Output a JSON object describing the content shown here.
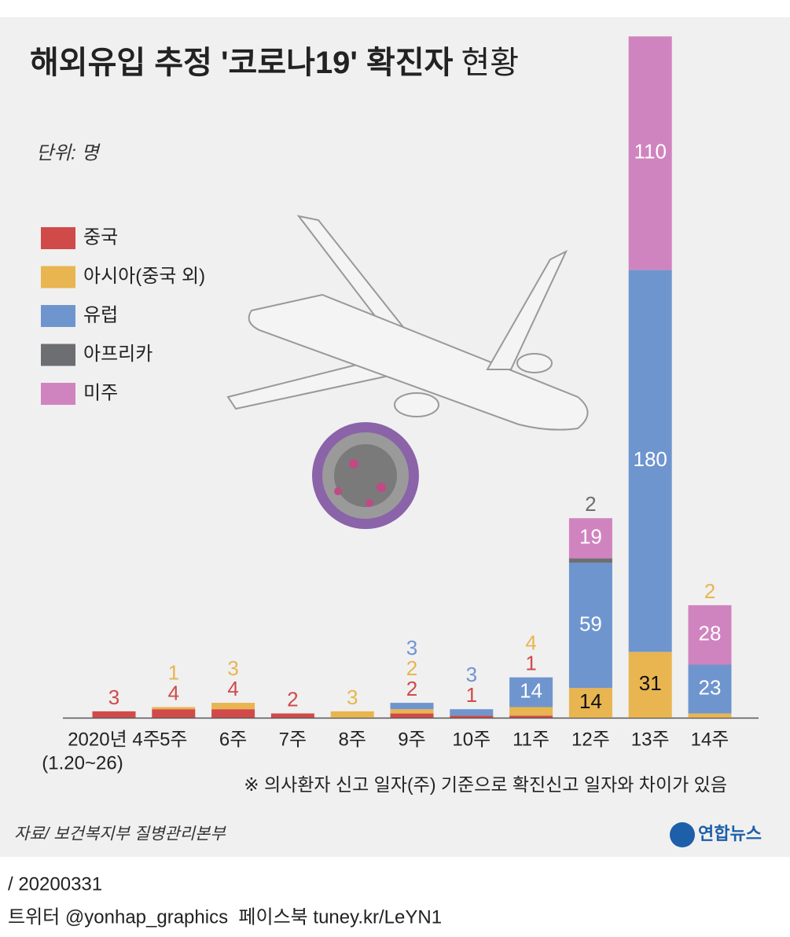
{
  "chart_data": {
    "type": "stacked-bar",
    "title": "해외유입 추정 '코로나19' 확진자",
    "title_suffix": "현황",
    "unit": "단위: 명",
    "categories": [
      "2020년 4주",
      "5주",
      "6주",
      "7주",
      "8주",
      "9주",
      "10주",
      "11주",
      "12주",
      "13주",
      "14주"
    ],
    "first_category_period": "(1.20~26)",
    "series": [
      {
        "name": "중국",
        "color": "#d04a4a",
        "values": [
          3,
          4,
          4,
          2,
          null,
          2,
          1,
          1,
          null,
          null,
          null
        ]
      },
      {
        "name": "아시아(중국 외)",
        "color": "#e8b550",
        "values": [
          null,
          1,
          3,
          null,
          3,
          2,
          null,
          4,
          14,
          31,
          2
        ]
      },
      {
        "name": "유럽",
        "color": "#6f95cf",
        "values": [
          null,
          null,
          null,
          null,
          null,
          3,
          3,
          14,
          59,
          180,
          23
        ]
      },
      {
        "name": "아프리카",
        "color": "#6d6e71",
        "values": [
          null,
          null,
          null,
          null,
          null,
          null,
          null,
          null,
          2,
          null,
          null
        ]
      },
      {
        "name": "미주",
        "color": "#d084bf",
        "values": [
          null,
          null,
          null,
          null,
          null,
          null,
          null,
          null,
          19,
          110,
          28
        ]
      }
    ],
    "note": "※ 의사환자 신고 일자(주) 기준으로 확진신고 일자와 차이가 있음",
    "source": "자료/ 보건복지부 질병관리본부",
    "logo": "연합뉴스",
    "date": "/ 20200331",
    "social": "트위터 @yonhap_graphics  페이스북 tuney.kr/LeYN1"
  }
}
